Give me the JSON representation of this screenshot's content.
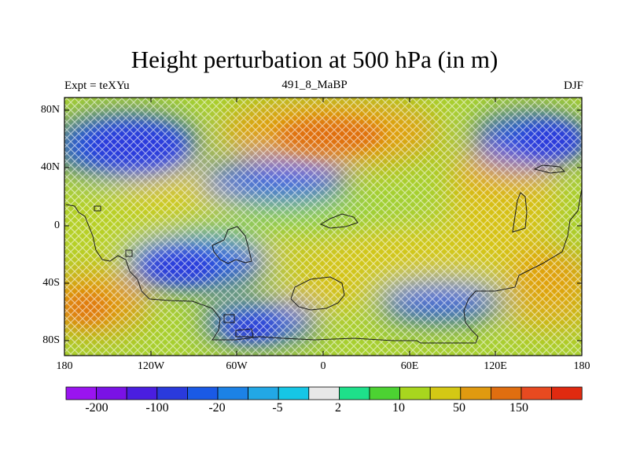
{
  "header": {
    "title": "Height perturbation at 500 hPa (in m)",
    "left": "Expt = teXYu",
    "center": "491_8_MaBP",
    "right": "DJF"
  },
  "axes": {
    "y_labels": [
      "80N",
      "40N",
      "0",
      "40S",
      "80S"
    ],
    "x_labels": [
      "180",
      "120W",
      "60W",
      "0",
      "60E",
      "120E",
      "180"
    ]
  },
  "colorbar": {
    "colors": [
      "#9a14f0",
      "#7a12e6",
      "#4a1ee0",
      "#2a3adc",
      "#1a5ae6",
      "#1c82e6",
      "#22a8e6",
      "#16c6e6",
      "#e8e8e8",
      "#1ee08a",
      "#4cd232",
      "#a8d61e",
      "#d4c814",
      "#e09a10",
      "#e06e10",
      "#e84a20",
      "#e02a10"
    ],
    "labels": [
      "-200",
      "-100",
      "-20",
      "-5",
      "2",
      "10",
      "50",
      "150"
    ]
  },
  "map": {
    "region": "global",
    "lat_range": [
      -90,
      90
    ],
    "lon_range": [
      -180,
      180
    ],
    "field": "height perturbation",
    "units": "m",
    "style": "filled contours with hatching, coastline outlines"
  }
}
